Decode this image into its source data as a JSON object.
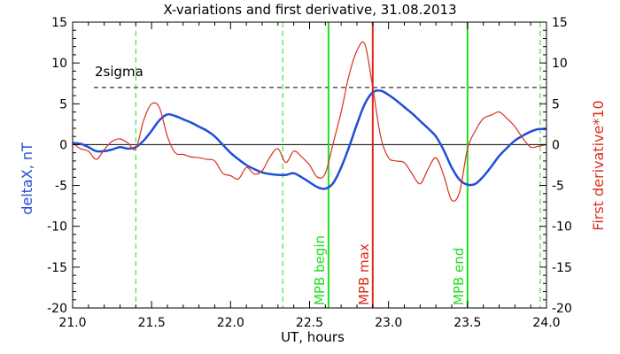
{
  "chart_data": {
    "type": "line",
    "title": "X-variations and first derivative, 31.08.2013",
    "xlabel": "UT, hours",
    "ylabel_left": "deltaX, nT",
    "ylabel_right": "First derivative*10",
    "xlim": [
      21.0,
      24.0
    ],
    "ylim_left": [
      -20,
      15
    ],
    "ylim_right": [
      -20,
      15
    ],
    "x_ticks": [
      "21.0",
      "21.5",
      "22.0",
      "22.5",
      "23.0",
      "23.5",
      "24.0"
    ],
    "y_ticks": [
      "-20",
      "-15",
      "-10",
      "-5",
      "0",
      "5",
      "10",
      "15"
    ],
    "grid": false,
    "threshold": {
      "label": "2sigma",
      "value": 7
    },
    "colors": {
      "deltaX": "#1f4fd6",
      "derivative": "#d9301f",
      "green_marker": "#22dd22",
      "red_marker": "#dd2a18",
      "axis": "#000000"
    },
    "vertical_markers": [
      {
        "x": 21.4,
        "style": "dashed",
        "color": "green",
        "label": ""
      },
      {
        "x": 22.33,
        "style": "dashed",
        "color": "green",
        "label": ""
      },
      {
        "x": 22.62,
        "style": "solid",
        "color": "green",
        "label": "MPB begin"
      },
      {
        "x": 22.9,
        "style": "solid",
        "color": "red",
        "label": "MPB max"
      },
      {
        "x": 23.5,
        "style": "solid",
        "color": "green",
        "label": "MPB end"
      },
      {
        "x": 23.96,
        "style": "dashed",
        "color": "green",
        "label": ""
      }
    ],
    "series": [
      {
        "key": "deltaX",
        "axis": "left",
        "x": [
          21.0,
          21.05,
          21.1,
          21.15,
          21.2,
          21.25,
          21.3,
          21.35,
          21.4,
          21.45,
          21.5,
          21.55,
          21.6,
          21.65,
          21.7,
          21.75,
          21.8,
          21.85,
          21.9,
          21.95,
          22.0,
          22.05,
          22.1,
          22.15,
          22.2,
          22.25,
          22.3,
          22.35,
          22.4,
          22.45,
          22.5,
          22.55,
          22.6,
          22.65,
          22.7,
          22.75,
          22.8,
          22.85,
          22.9,
          22.95,
          23.0,
          23.05,
          23.1,
          23.15,
          23.2,
          23.25,
          23.3,
          23.35,
          23.4,
          23.45,
          23.5,
          23.55,
          23.6,
          23.65,
          23.7,
          23.75,
          23.8,
          23.85,
          23.9,
          23.95,
          24.0
        ],
        "values": [
          0.2,
          0.1,
          -0.3,
          -0.8,
          -0.8,
          -0.6,
          -0.3,
          -0.5,
          -0.3,
          0.5,
          1.7,
          3.0,
          3.7,
          3.5,
          3.1,
          2.7,
          2.2,
          1.7,
          1.0,
          0.0,
          -1.0,
          -1.8,
          -2.5,
          -3.0,
          -3.4,
          -3.6,
          -3.7,
          -3.7,
          -3.5,
          -4.0,
          -4.6,
          -5.2,
          -5.4,
          -4.7,
          -2.8,
          -0.3,
          2.5,
          5.0,
          6.4,
          6.6,
          6.1,
          5.4,
          4.6,
          3.8,
          2.9,
          2.0,
          1.0,
          -0.7,
          -2.8,
          -4.3,
          -4.9,
          -4.8,
          -3.9,
          -2.7,
          -1.4,
          -0.4,
          0.5,
          1.1,
          1.6,
          1.9,
          1.9
        ]
      },
      {
        "key": "derivative",
        "axis": "right",
        "x": [
          21.0,
          21.05,
          21.1,
          21.15,
          21.2,
          21.25,
          21.3,
          21.35,
          21.4,
          21.45,
          21.5,
          21.55,
          21.6,
          21.65,
          21.7,
          21.75,
          21.8,
          21.85,
          21.9,
          21.95,
          22.0,
          22.05,
          22.1,
          22.15,
          22.2,
          22.25,
          22.3,
          22.35,
          22.4,
          22.45,
          22.5,
          22.55,
          22.6,
          22.65,
          22.7,
          22.75,
          22.8,
          22.85,
          22.9,
          22.95,
          23.0,
          23.05,
          23.1,
          23.15,
          23.2,
          23.25,
          23.3,
          23.35,
          23.4,
          23.45,
          23.5,
          23.55,
          23.6,
          23.65,
          23.7,
          23.75,
          23.8,
          23.85,
          23.9,
          23.95,
          24.0
        ],
        "values": [
          0.2,
          -0.5,
          -0.8,
          -1.8,
          -0.6,
          0.4,
          0.7,
          0.2,
          -0.5,
          3.0,
          5.0,
          4.5,
          1.0,
          -1.0,
          -1.2,
          -1.5,
          -1.6,
          -1.8,
          -2.0,
          -3.5,
          -3.8,
          -4.2,
          -2.8,
          -3.6,
          -3.2,
          -1.5,
          -0.5,
          -2.2,
          -0.8,
          -1.5,
          -2.5,
          -4.0,
          -3.5,
          0.2,
          4.0,
          8.5,
          11.5,
          12.3,
          7.0,
          1.0,
          -1.6,
          -2.0,
          -2.2,
          -3.6,
          -4.8,
          -3.0,
          -1.6,
          -3.8,
          -6.8,
          -5.8,
          -0.5,
          1.7,
          3.2,
          3.6,
          4.0,
          3.2,
          2.2,
          0.8,
          -0.3,
          -0.2,
          0.0
        ]
      }
    ]
  }
}
